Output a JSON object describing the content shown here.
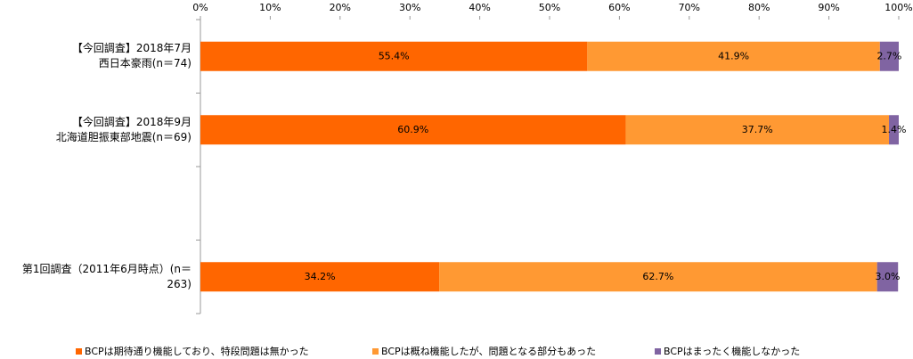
{
  "chart_data": {
    "type": "stacked-bar-horizontal",
    "categories": [
      "【今回調査】2018年7月\n西日本豪雨(n＝74)",
      "【今回調査】2018年9月\n北海道胆振東部地震(n＝69)",
      null,
      "第1回調査（2011年6月時点）(n＝263)"
    ],
    "series": [
      {
        "name": "BCPは期待通り機能しており、特段問題は無かった",
        "color": "#ff6600",
        "values": [
          55.4,
          60.9,
          null,
          34.2
        ],
        "value_labels": [
          "55.4%",
          "60.9%",
          null,
          "34.2%"
        ]
      },
      {
        "name": "BCPは概ね機能したが、問題となる部分もあった",
        "color": "#ff9933",
        "values": [
          41.9,
          37.7,
          null,
          62.7
        ],
        "value_labels": [
          "41.9%",
          "37.7%",
          null,
          "62.7%"
        ]
      },
      {
        "name": "BCPはまったく機能しなかった",
        "color": "#8064a2",
        "values": [
          2.7,
          1.4,
          null,
          3.0
        ],
        "value_labels": [
          "2.7%",
          "1.4%",
          null,
          "3.0%"
        ]
      }
    ],
    "xlim": [
      0,
      100
    ],
    "xticks": [
      {
        "value": 0,
        "label": "0%"
      },
      {
        "value": 10,
        "label": "10%"
      },
      {
        "value": 20,
        "label": "20%"
      },
      {
        "value": 30,
        "label": "30%"
      },
      {
        "value": 40,
        "label": "40%"
      },
      {
        "value": 50,
        "label": "50%"
      },
      {
        "value": 60,
        "label": "60%"
      },
      {
        "value": 70,
        "label": "70%"
      },
      {
        "value": 80,
        "label": "80%"
      },
      {
        "value": 90,
        "label": "90%"
      },
      {
        "value": 100,
        "label": "100%"
      }
    ],
    "legend": "bottom"
  }
}
